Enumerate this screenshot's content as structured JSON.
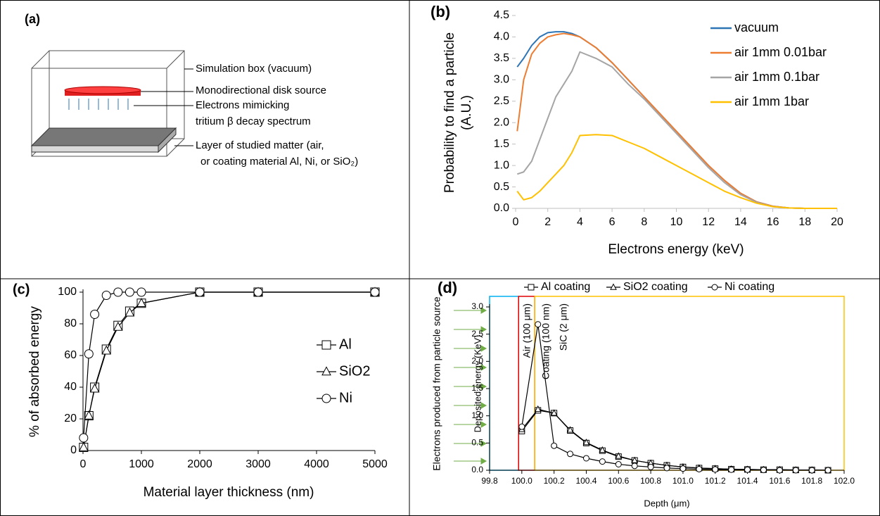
{
  "diagram": {
    "label": "(a)",
    "texts": [
      "Simulation box (vacuum)",
      "Monodirectional disk source",
      "Electrons mimicking",
      "tritium β decay spectrum",
      "Layer of studied matter (air,",
      "or coating material Al, Ni, or SiO₂)"
    ]
  },
  "chart_data": [
    {
      "type": "line",
      "label": "(b)",
      "xlabel": "Electrons energy (keV)",
      "ylabel": [
        "Probability to find a particle",
        "(A.U.)"
      ],
      "x": [
        0.1,
        0.5,
        1,
        1.5,
        2,
        2.5,
        3,
        3.5,
        4,
        5,
        6,
        7,
        8,
        9,
        10,
        11,
        12,
        13,
        14,
        15,
        16,
        17,
        18,
        20
      ],
      "xlim": [
        0,
        20
      ],
      "xticks": [
        0,
        2,
        4,
        6,
        8,
        10,
        12,
        14,
        16,
        18,
        20
      ],
      "ylim": [
        0,
        4.5
      ],
      "yticks": [
        {
          "value": 0,
          "label": "0.0"
        },
        0.5,
        {
          "value": 1,
          "label": "1.0"
        },
        1.5,
        {
          "value": 2,
          "label": "2.0"
        },
        2.5,
        {
          "value": 3,
          "label": "3.0"
        },
        3.5,
        {
          "value": 4,
          "label": "4.0"
        },
        4.5
      ],
      "legend": "upper right",
      "series": [
        {
          "name": "vacuum",
          "color": "#2e75b6",
          "values": [
            3.3,
            3.5,
            3.8,
            4.0,
            4.1,
            4.12,
            4.12,
            4.08,
            4.0,
            3.75,
            3.4,
            3.0,
            2.6,
            2.2,
            1.8,
            1.4,
            1.0,
            0.65,
            0.35,
            0.15,
            0.05,
            0.01,
            0,
            0
          ]
        },
        {
          "name": "air 1mm 0.01bar",
          "color": "#ed7d31",
          "values": [
            1.8,
            3.0,
            3.6,
            3.85,
            4.0,
            4.05,
            4.08,
            4.05,
            4.0,
            3.75,
            3.4,
            3.0,
            2.6,
            2.2,
            1.8,
            1.4,
            1.0,
            0.65,
            0.35,
            0.15,
            0.05,
            0.01,
            0,
            0
          ]
        },
        {
          "name": "air 1mm 0.1bar",
          "color": "#a5a5a5",
          "values": [
            0.8,
            0.85,
            1.1,
            1.6,
            2.1,
            2.6,
            2.9,
            3.2,
            3.65,
            3.5,
            3.3,
            2.9,
            2.55,
            2.15,
            1.75,
            1.35,
            0.95,
            0.6,
            0.32,
            0.14,
            0.04,
            0.01,
            0,
            0
          ]
        },
        {
          "name": "air 1mm 1bar",
          "color": "#ffc000",
          "values": [
            0.4,
            0.2,
            0.25,
            0.4,
            0.6,
            0.8,
            1.0,
            1.3,
            1.7,
            1.72,
            1.7,
            1.55,
            1.4,
            1.2,
            1.0,
            0.8,
            0.6,
            0.4,
            0.25,
            0.12,
            0.04,
            0.01,
            0,
            0
          ]
        }
      ]
    },
    {
      "type": "line",
      "label": "(c)",
      "xlabel": "Material layer thickness (nm)",
      "ylabel": [
        "% of absorbed energy"
      ],
      "x": [
        10,
        100,
        200,
        400,
        600,
        800,
        1000,
        2000,
        3000,
        5000
      ],
      "xlim": [
        0,
        5000
      ],
      "xticks": [
        0,
        1000,
        2000,
        3000,
        4000,
        5000
      ],
      "ylim": [
        0,
        100
      ],
      "yticks": [
        0,
        20,
        40,
        60,
        80,
        100
      ],
      "legend": "right",
      "series": [
        {
          "name": "Al",
          "color": "#000000",
          "marker": "square",
          "values": [
            2,
            22,
            40,
            64,
            79,
            88,
            93,
            100,
            100,
            100
          ]
        },
        {
          "name": "SiO2",
          "color": "#000000",
          "marker": "triangle",
          "values": [
            2,
            22,
            39,
            63,
            78,
            87,
            93,
            100,
            100,
            100
          ]
        },
        {
          "name": "Ni",
          "color": "#000000",
          "marker": "circle",
          "values": [
            8,
            61,
            86,
            98,
            100,
            100,
            100,
            100,
            100,
            100
          ]
        }
      ]
    },
    {
      "type": "line",
      "label": "(d)",
      "xlabel": "Depth (μm)",
      "ylabel": [
        "Deposited energy (KeV)"
      ],
      "annotation": "Electrons produced from particle source",
      "x": [
        100.0,
        100.1,
        100.2,
        100.3,
        100.4,
        100.5,
        100.6,
        100.7,
        100.8,
        100.9,
        101.0,
        101.1,
        101.2,
        101.3,
        101.4,
        101.5,
        101.6,
        101.7,
        101.8,
        101.9
      ],
      "xlim": [
        99.8,
        102.0
      ],
      "xticks": [
        99.8,
        {
          "value": 100,
          "label": "100.0"
        },
        100.2,
        100.4,
        100.6,
        100.8,
        {
          "value": 101,
          "label": "101.0"
        },
        101.2,
        101.4,
        101.6,
        101.8,
        {
          "value": 102,
          "label": "102.0"
        }
      ],
      "ylim": [
        0,
        3
      ],
      "yticks": [
        {
          "value": 0,
          "label": "0.0"
        },
        0.5,
        {
          "value": 1,
          "label": "1.0"
        },
        1.5,
        {
          "value": 2,
          "label": "2.0"
        },
        2.5,
        {
          "value": 3,
          "label": "3.0"
        }
      ],
      "legend": "top",
      "regions": [
        {
          "label": "Air (100 μm)",
          "color": "#00b0f0",
          "from": 99.8,
          "to": 99.98
        },
        {
          "label": "Coating (100 nm)",
          "color": "#e00000",
          "from": 99.98,
          "to": 100.08
        },
        {
          "label": "SiC (2 μm)",
          "color": "#ffc000",
          "from": 100.08,
          "to": 102.0
        }
      ],
      "series": [
        {
          "name": "Al coating",
          "color": "#000000",
          "marker": "square",
          "values": [
            0.72,
            1.1,
            1.05,
            0.73,
            0.5,
            0.36,
            0.25,
            0.18,
            0.13,
            0.09,
            0.06,
            0.04,
            0.03,
            0.02,
            0.015,
            0.01,
            0.01,
            0.005,
            0.005,
            0
          ]
        },
        {
          "name": "SiO2 coating",
          "color": "#000000",
          "marker": "triangle",
          "values": [
            0.75,
            1.12,
            1.05,
            0.74,
            0.51,
            0.37,
            0.26,
            0.18,
            0.13,
            0.09,
            0.06,
            0.04,
            0.03,
            0.02,
            0.015,
            0.01,
            0.01,
            0.005,
            0.005,
            0
          ]
        },
        {
          "name": "Ni coating",
          "color": "#000000",
          "marker": "circle",
          "values": [
            0.8,
            2.68,
            0.45,
            0.3,
            0.22,
            0.16,
            0.11,
            0.08,
            0.06,
            0.04,
            0.03,
            0.02,
            0.015,
            0.01,
            0.01,
            0.005,
            0,
            0,
            0,
            0
          ]
        }
      ]
    }
  ]
}
